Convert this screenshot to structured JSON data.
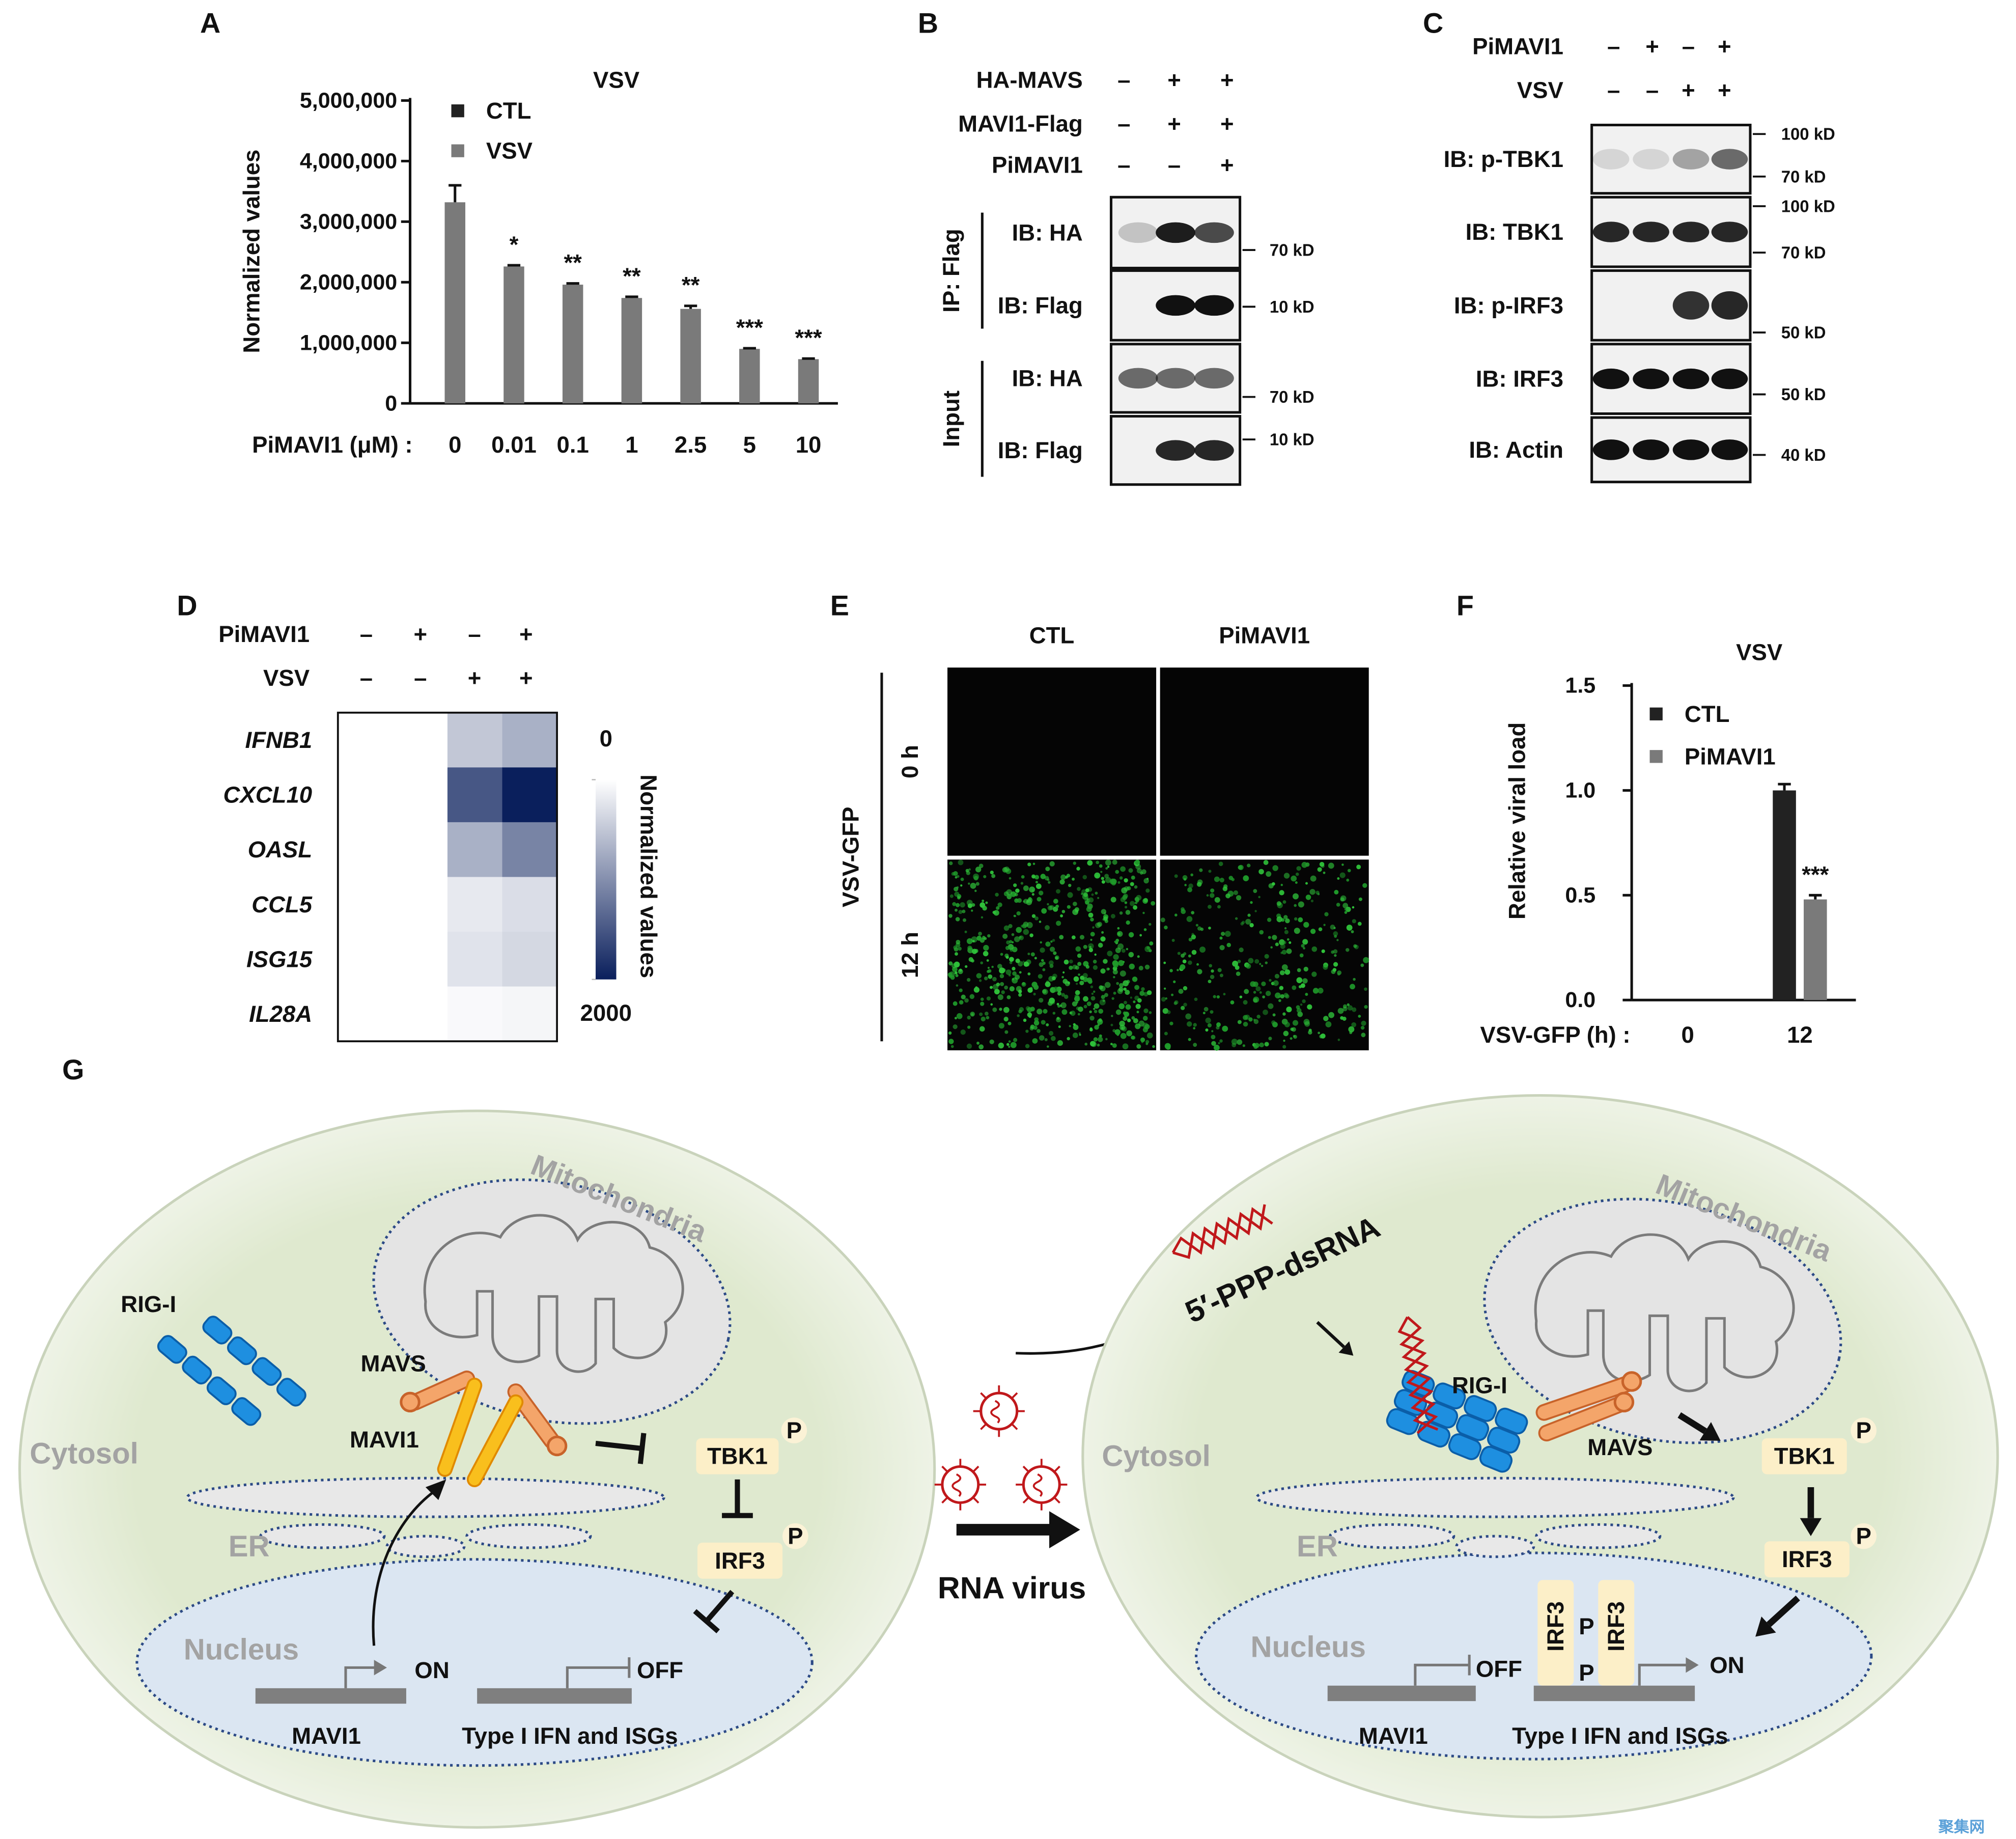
{
  "panel_labels": [
    "A",
    "B",
    "C",
    "D",
    "E",
    "F",
    "G"
  ],
  "chart_data": [
    {
      "type": "bar",
      "title": "VSV",
      "ylabel": "Normalized values",
      "xlabel": "PiMAVI1 (μM) :",
      "categories": [
        "0",
        "0.01",
        "0.1",
        "1",
        "2.5",
        "5",
        "10"
      ],
      "series": [
        {
          "name": "CTL",
          "color": "#222222",
          "values": [
            null,
            null,
            null,
            null,
            null,
            null,
            null
          ]
        },
        {
          "name": "VSV",
          "color": "#7a7a7a",
          "values": [
            3320000,
            2260000,
            1960000,
            1740000,
            1560000,
            900000,
            730000
          ],
          "errors": [
            280000,
            20000,
            20000,
            20000,
            50000,
            10000,
            10000
          ],
          "annotations": [
            null,
            "*",
            "**",
            "**",
            "**",
            "***",
            "***"
          ]
        }
      ],
      "ylim": [
        0,
        5000000
      ],
      "yticks": [
        0,
        {
          "value": 1000000,
          "label": "1,000,000"
        },
        {
          "value": 2000000,
          "label": "2,000,000"
        },
        {
          "value": 3000000,
          "label": "3,000,000"
        },
        {
          "value": 4000000,
          "label": "4,000,000"
        },
        {
          "value": 5000000,
          "label": "5,000,000"
        }
      ],
      "grid": false,
      "legend": "upper left"
    },
    {
      "type": "bar",
      "title": "VSV",
      "ylabel": "Relative viral load",
      "xlabel": "VSV-GFP (h) :",
      "categories": [
        "0",
        "12"
      ],
      "series": [
        {
          "name": "CTL",
          "color": "#222222",
          "values": [
            null,
            1.0
          ],
          "errors": [
            null,
            0.03
          ]
        },
        {
          "name": "PiMAVI1",
          "color": "#7a7a7a",
          "values": [
            null,
            0.48
          ],
          "errors": [
            null,
            0.02
          ],
          "annotations": [
            null,
            "***"
          ]
        }
      ],
      "ylim": [
        0,
        1.5
      ],
      "yticks": [
        {
          "value": 0,
          "label": "0.0"
        },
        0.5,
        {
          "value": 1,
          "label": "1.0"
        },
        1.5
      ],
      "grid": false,
      "legend": "upper left"
    },
    {
      "type": "heatmap",
      "conditions": [
        {
          "name": "PiMAVI1",
          "signs": [
            "–",
            "+",
            "–",
            "+"
          ]
        },
        {
          "name": "VSV",
          "signs": [
            "–",
            "–",
            "+",
            "+"
          ]
        }
      ],
      "rows": [
        "IFNB1",
        "CXCL10",
        "OASL",
        "CCL5",
        "ISG15",
        "IL28A"
      ],
      "values": [
        [
          0,
          0,
          500,
          700
        ],
        [
          0,
          0,
          1500,
          2000
        ],
        [
          0,
          0,
          700,
          1100
        ],
        [
          0,
          0,
          200,
          300
        ],
        [
          0,
          0,
          250,
          350
        ],
        [
          0,
          0,
          50,
          80
        ]
      ],
      "colorbar": {
        "label": "Normalized values",
        "lim": [
          0,
          2000
        ],
        "ticks": [
          0,
          2000
        ],
        "colors": [
          "#ffffff",
          "#0a1f5c"
        ]
      }
    }
  ],
  "blot_b": {
    "conditions": [
      {
        "name": "HA-MAVS",
        "signs": [
          "–",
          "+",
          "+"
        ]
      },
      {
        "name": "MAVI1-Flag",
        "signs": [
          "–",
          "+",
          "+"
        ]
      },
      {
        "name": "PiMAVI1",
        "signs": [
          "–",
          "–",
          "+"
        ]
      }
    ],
    "groups": [
      {
        "name": "IP: Flag",
        "rows": [
          {
            "label": "IB: HA",
            "marker": "70 kD"
          },
          {
            "label": "IB: Flag",
            "marker": "10 kD"
          }
        ]
      },
      {
        "name": "Input",
        "rows": [
          {
            "label": "IB: HA",
            "marker": "70 kD"
          },
          {
            "label": "IB: Flag",
            "marker": "10 kD"
          }
        ]
      }
    ]
  },
  "blot_c": {
    "conditions": [
      {
        "name": "PiMAVI1",
        "signs": [
          "–",
          "+",
          "–",
          "+"
        ]
      },
      {
        "name": "VSV",
        "signs": [
          "–",
          "–",
          "+",
          "+"
        ]
      }
    ],
    "rows": [
      {
        "label": "IB: p-TBK1",
        "markers": [
          "100 kD",
          "70 kD"
        ]
      },
      {
        "label": "IB: TBK1",
        "markers": [
          "100 kD",
          "70 kD"
        ]
      },
      {
        "label": "IB: p-IRF3",
        "markers": [
          "50 kD"
        ]
      },
      {
        "label": "IB: IRF3",
        "markers": [
          "50 kD"
        ]
      },
      {
        "label": "IB: Actin",
        "markers": [
          "40 kD"
        ]
      }
    ]
  },
  "micrograph_e": {
    "columns": [
      "CTL",
      "PiMAVI1"
    ],
    "rows": [
      "0 h",
      "12 h"
    ],
    "side_label": "VSV-GFP"
  },
  "diagram_g": {
    "left": {
      "mito": "Mitochondria",
      "rigi": "RIG-I",
      "mavs": "MAVS",
      "mavi1": "MAVI1",
      "cytosol": "Cytosol",
      "er": "ER",
      "tbk1": "TBK1",
      "tbk1_p": "P",
      "irf3": "IRF3",
      "irf3_p": "P",
      "nucleus": "Nucleus",
      "on": "ON",
      "off": "OFF",
      "gene_a": "MAVI1",
      "gene_b": "Type I IFN and ISGs"
    },
    "middle": {
      "virus": "RNA virus"
    },
    "right": {
      "mito": "Mitochondria",
      "rna": "5′-PPP-dsRNA",
      "rigi": "RIG-I",
      "mavs": "MAVS",
      "cytosol": "Cytosol",
      "tbk1": "TBK1",
      "tbk1_p": "P",
      "irf3": "IRF3",
      "irf3_p": "P",
      "er": "ER",
      "nucleus": "Nucleus",
      "off": "OFF",
      "dimer_a": "IRF3",
      "dimer_b": "IRF3",
      "dimer_p1": "P",
      "dimer_p2": "P",
      "on": "ON",
      "gene_a": "MAVI1",
      "gene_b": "Type I IFN and ISGs"
    }
  },
  "watermark": "聚集网"
}
